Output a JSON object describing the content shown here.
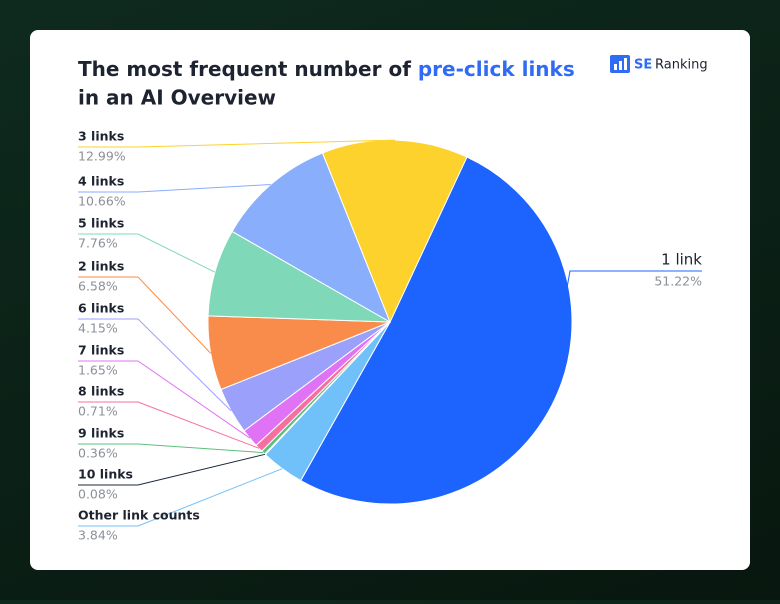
{
  "chart_data": {
    "type": "pie",
    "title": {
      "text_before": "The most frequent number of",
      "highlight": "pre-click links",
      "text_after": "in an AI Overview"
    },
    "brand": {
      "mark": "SE",
      "name": "Ranking"
    },
    "categories": [
      "1 link",
      "Other link counts",
      "10 links",
      "9 links",
      "8 links",
      "7 links",
      "6 links",
      "2 links",
      "5 links",
      "4 links",
      "3 links"
    ],
    "values": [
      51.22,
      3.84,
      0.08,
      0.36,
      0.71,
      1.65,
      4.15,
      6.58,
      7.76,
      10.66,
      12.99
    ],
    "value_labels": [
      "51.22%",
      "3.84%",
      "0.08%",
      "0.36%",
      "0.71%",
      "1.65%",
      "4.15%",
      "6.58%",
      "7.76%",
      "10.66%",
      "12.99%"
    ],
    "colors": [
      "#1c64fd",
      "#70c0fa",
      "#1b2838",
      "#5dbf7c",
      "#f56fa1",
      "#e073f5",
      "#9ba1fb",
      "#fa8c4b",
      "#7fd8b7",
      "#88aefc",
      "#fdd22c"
    ]
  }
}
